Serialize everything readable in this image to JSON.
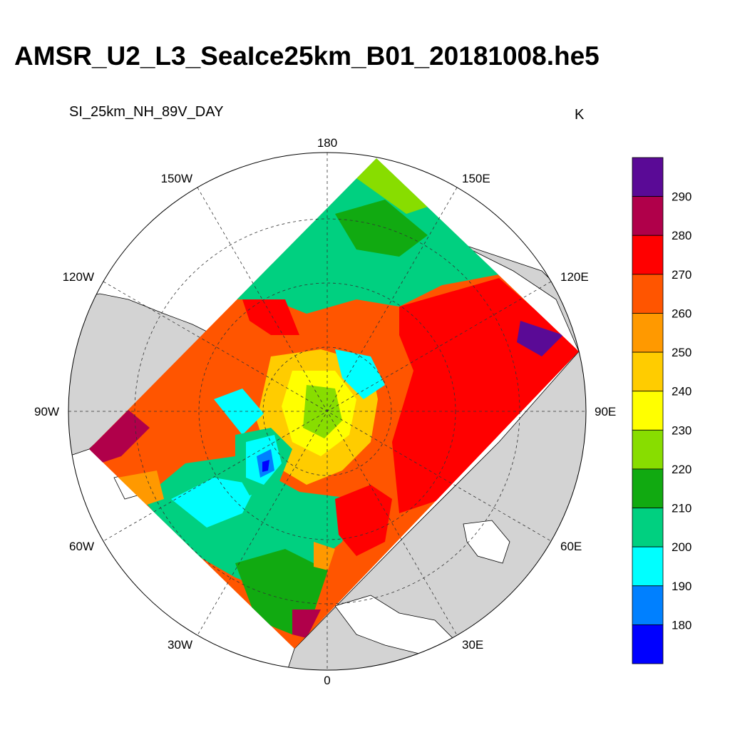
{
  "title": "AMSR_U2_L3_SeaIce25km_B01_20181008.he5",
  "subtitle": "SI_25km_NH_89V_DAY",
  "units": "K",
  "longitude_labels": {
    "top": "180",
    "bottom": "0",
    "left": "90W",
    "right": "90E",
    "w150": "150W",
    "e150": "150E",
    "w120": "120W",
    "e120": "120E",
    "w60": "60W",
    "e60": "60E",
    "w30": "30W",
    "e30": "30E"
  },
  "colorbar": {
    "labels": [
      "290",
      "280",
      "270",
      "260",
      "250",
      "240",
      "230",
      "220",
      "210",
      "200",
      "190",
      "180"
    ],
    "colors": [
      "#5a0a96",
      "#b0004a",
      "#ff0000",
      "#ff5500",
      "#ff9900",
      "#ffcc00",
      "#ffff00",
      "#88dd00",
      "#11aa11",
      "#00d080",
      "#00ffff",
      "#0080ff",
      "#0000ff"
    ]
  },
  "colors": {
    "land": "#d3d3d3",
    "ocean": "#ffffff"
  }
}
